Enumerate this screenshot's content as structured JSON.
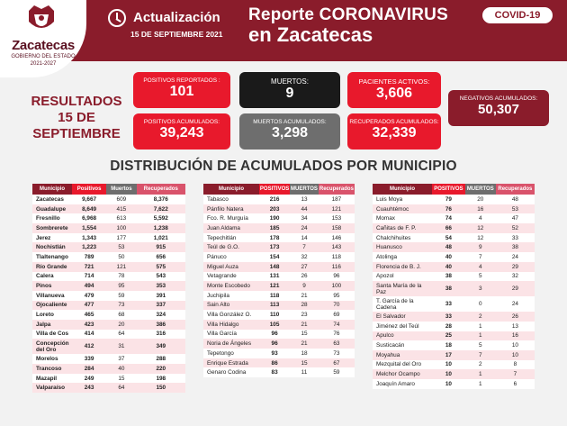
{
  "header": {
    "logo_name": "Zacatecas",
    "logo_sub": "GOBIERNO DEL ESTADO",
    "logo_years": "2021-2027",
    "update_label": "Actualización",
    "update_date": "15 DE SEPTIEMBRE 2021",
    "report_line1": "Reporte CORONAVIRUS",
    "report_line2": "en Zacatecas",
    "badge": "COVID-19"
  },
  "results_label": "RESULTADOS 15 DE SEPTIEMBRE",
  "stats": {
    "pos_rep": {
      "label": "POSITIVOS REPORTADOS :",
      "value": "101"
    },
    "muertos": {
      "label": "MUERTOS:",
      "value": "9"
    },
    "activos": {
      "label": "PACIENTES ACTIVOS:",
      "value": "3,606"
    },
    "neg_acum": {
      "label": "NEGATIVOS ACUMULADOS:",
      "value": "50,307"
    },
    "pos_acum": {
      "label": "POSITIVOS ACUMULADOS:",
      "value": "39,243"
    },
    "muertos_acum": {
      "label": "MUERTOS ACUMULADOS:",
      "value": "3,298"
    },
    "recuperados": {
      "label": "RECUPERADOS ACUMULADOS:",
      "value": "32,339"
    }
  },
  "section_title": "DISTRIBUCIÓN DE ACUMULADOS POR MUNICIPIO",
  "columns": [
    "Municipio",
    "Positivos",
    "Muertos",
    "Recuperados"
  ],
  "columns_alt": [
    "Municipio",
    "POSITIVOS",
    "MUERTOS",
    "Recuperados"
  ],
  "table1": [
    [
      "Zacatecas",
      "9,667",
      "609",
      "8,376"
    ],
    [
      "Guadalupe",
      "8,649",
      "415",
      "7,622"
    ],
    [
      "Fresnillo",
      "6,968",
      "613",
      "5,592"
    ],
    [
      "Sombrerete",
      "1,554",
      "100",
      "1,238"
    ],
    [
      "Jerez",
      "1,343",
      "177",
      "1,021"
    ],
    [
      "Nochistlán",
      "1,223",
      "53",
      "915"
    ],
    [
      "Tlaltenango",
      "789",
      "50",
      "656"
    ],
    [
      "Río Grande",
      "721",
      "121",
      "575"
    ],
    [
      "Calera",
      "714",
      "78",
      "543"
    ],
    [
      "Pinos",
      "494",
      "95",
      "353"
    ],
    [
      "Villanueva",
      "479",
      "59",
      "391"
    ],
    [
      "Ojocaliente",
      "477",
      "73",
      "337"
    ],
    [
      "Loreto",
      "465",
      "68",
      "324"
    ],
    [
      "Jalpa",
      "423",
      "20",
      "386"
    ],
    [
      "Villa de Cos",
      "414",
      "64",
      "316"
    ],
    [
      "Concepción del Oro",
      "412",
      "31",
      "349"
    ],
    [
      "Morelos",
      "339",
      "37",
      "288"
    ],
    [
      "Trancoso",
      "284",
      "40",
      "220"
    ],
    [
      "Mazapil",
      "249",
      "15",
      "198"
    ],
    [
      "Valparaíso",
      "243",
      "64",
      "150"
    ]
  ],
  "table2": [
    [
      "Tabasco",
      "216",
      "13",
      "187"
    ],
    [
      "Pánfilo Natera",
      "203",
      "44",
      "121"
    ],
    [
      "Fco. R. Murguía",
      "190",
      "34",
      "153"
    ],
    [
      "Juan Aldama",
      "185",
      "24",
      "158"
    ],
    [
      "Tepechitlán",
      "178",
      "14",
      "146"
    ],
    [
      "Teúl de G.O.",
      "173",
      "7",
      "143"
    ],
    [
      "Pánuco",
      "154",
      "32",
      "118"
    ],
    [
      "Miguel Auza",
      "148",
      "27",
      "116"
    ],
    [
      "Vetagrande",
      "131",
      "26",
      "96"
    ],
    [
      "Monte Escobedo",
      "121",
      "9",
      "100"
    ],
    [
      "Juchipila",
      "118",
      "21",
      "95"
    ],
    [
      "Sain Alto",
      "113",
      "28",
      "70"
    ],
    [
      "Villa González O.",
      "110",
      "23",
      "69"
    ],
    [
      "Villa Hidalgo",
      "105",
      "21",
      "74"
    ],
    [
      "Villa García",
      "96",
      "15",
      "76"
    ],
    [
      "Noria de Ángeles",
      "96",
      "21",
      "63"
    ],
    [
      "Tepetongo",
      "93",
      "18",
      "73"
    ],
    [
      "Enrique Estrada",
      "86",
      "15",
      "67"
    ],
    [
      "Genaro Codina",
      "83",
      "11",
      "59"
    ]
  ],
  "table3": [
    [
      "Luis Moya",
      "79",
      "20",
      "48"
    ],
    [
      "Cuauhtémoc",
      "76",
      "16",
      "53"
    ],
    [
      "Momax",
      "74",
      "4",
      "47"
    ],
    [
      "Cañitas de F. P.",
      "66",
      "12",
      "52"
    ],
    [
      "Chalchihuites",
      "54",
      "12",
      "33"
    ],
    [
      "Huanusco",
      "48",
      "9",
      "38"
    ],
    [
      "Atolinga",
      "40",
      "7",
      "24"
    ],
    [
      "Florencia de B. J.",
      "40",
      "4",
      "29"
    ],
    [
      "Apozol",
      "38",
      "5",
      "32"
    ],
    [
      "Santa María de la Paz",
      "38",
      "3",
      "29"
    ],
    [
      "T. García de la Cadena",
      "33",
      "0",
      "24"
    ],
    [
      "El Salvador",
      "33",
      "2",
      "26"
    ],
    [
      "Jiménez del Teúl",
      "28",
      "1",
      "13"
    ],
    [
      "Apulco",
      "25",
      "1",
      "16"
    ],
    [
      "Susticacán",
      "18",
      "5",
      "10"
    ],
    [
      "Moyahua",
      "17",
      "7",
      "10"
    ],
    [
      "Mezquital del Oro",
      "10",
      "2",
      "8"
    ],
    [
      "Melchor Ocampo",
      "10",
      "1",
      "7"
    ],
    [
      "Joaquín Amaro",
      "10",
      "1",
      "6"
    ]
  ]
}
